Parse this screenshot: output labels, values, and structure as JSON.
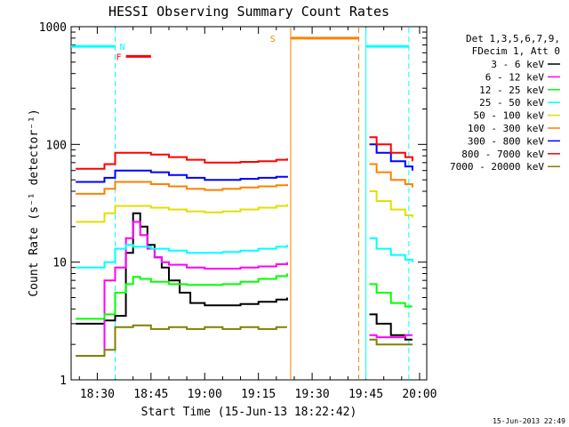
{
  "chart_data": {
    "type": "line",
    "title": "HESSI Observing Summary Count Rates",
    "xlabel": "Start Time (15-Jun-13 18:22:42)",
    "ylabel": "Count Rate (s⁻¹ detector⁻¹)",
    "yscale": "log",
    "ylim": [
      1,
      1000
    ],
    "xlim": [
      "18:22:42",
      "20:02:00"
    ],
    "x_ticks": [
      "18:30",
      "18:45",
      "19:00",
      "19:15",
      "19:30",
      "19:45",
      "20:00"
    ],
    "y_ticks": [
      "1",
      "10",
      "100",
      "1000"
    ],
    "grid": false,
    "legend_position": "right",
    "legend_header": [
      "Det 1,3,5,6,7,9,",
      "FDecim 1, Att 0"
    ],
    "footer_date": "15-Jun-2013 22:49",
    "data_gaps": [
      [
        "19:23",
        "19:45"
      ]
    ],
    "series": [
      {
        "name": "3 - 6 keV",
        "color": "#000000",
        "x": [
          "18:24",
          "18:32",
          "18:35",
          "18:38",
          "18:40",
          "18:42",
          "18:44",
          "18:46",
          "18:48",
          "18:50",
          "18:53",
          "18:56",
          "19:00",
          "19:05",
          "19:10",
          "19:15",
          "19:20",
          "19:23",
          "19:46",
          "19:48",
          "19:52",
          "19:56",
          "19:58"
        ],
        "values": [
          3.0,
          3.2,
          3.5,
          12,
          26,
          20,
          14,
          11,
          9,
          7,
          5.5,
          4.5,
          4.3,
          4.3,
          4.4,
          4.6,
          4.8,
          5.0,
          3.6,
          3.0,
          2.4,
          2.2,
          2.2
        ]
      },
      {
        "name": "6 - 12 keV",
        "color": "#ff00ff",
        "x": [
          "18:24",
          "18:32",
          "18:35",
          "18:38",
          "18:40",
          "18:42",
          "18:44",
          "18:46",
          "18:48",
          "18:50",
          "18:55",
          "19:00",
          "19:05",
          "19:10",
          "19:15",
          "19:20",
          "19:23",
          "19:46",
          "19:48",
          "19:52",
          "19:56",
          "19:58"
        ],
        "values": [
          1.6,
          7,
          9,
          16,
          22,
          17,
          13,
          11,
          10,
          9.5,
          9,
          8.8,
          8.8,
          9,
          9.2,
          9.6,
          10,
          2.4,
          2.3,
          2.3,
          2.4,
          2.4
        ]
      },
      {
        "name": "12 - 25 keV",
        "color": "#00ff00",
        "x": [
          "18:24",
          "18:32",
          "18:35",
          "18:38",
          "18:40",
          "18:42",
          "18:45",
          "18:50",
          "18:55",
          "19:00",
          "19:05",
          "19:10",
          "19:15",
          "19:20",
          "19:23",
          "19:46",
          "19:48",
          "19:52",
          "19:56",
          "19:58"
        ],
        "values": [
          3.3,
          3.6,
          5.5,
          6.5,
          7.5,
          7.2,
          6.8,
          6.5,
          6.4,
          6.4,
          6.5,
          6.8,
          7.2,
          7.6,
          8.0,
          6.5,
          5.5,
          4.5,
          4.2,
          4.2
        ]
      },
      {
        "name": "25 - 50 keV",
        "color": "#00ffff",
        "x": [
          "18:24",
          "18:32",
          "18:35",
          "18:38",
          "18:40",
          "18:45",
          "18:50",
          "18:55",
          "19:00",
          "19:05",
          "19:10",
          "19:15",
          "19:20",
          "19:23",
          "19:46",
          "19:48",
          "19:52",
          "19:56",
          "19:58"
        ],
        "values": [
          9,
          10,
          13,
          14,
          13.5,
          13,
          12.5,
          12,
          12,
          12.2,
          12.5,
          13,
          13.5,
          14,
          16,
          13,
          11.5,
          10.5,
          10
        ]
      },
      {
        "name": "50 - 100 keV",
        "color": "#e0e000",
        "x": [
          "18:24",
          "18:32",
          "18:35",
          "18:40",
          "18:45",
          "18:50",
          "18:55",
          "19:00",
          "19:05",
          "19:10",
          "19:15",
          "19:20",
          "19:23",
          "19:46",
          "19:48",
          "19:52",
          "19:56",
          "19:58"
        ],
        "values": [
          22,
          26,
          30,
          30,
          29,
          28,
          27,
          26.5,
          27,
          28,
          29,
          30,
          31,
          40,
          33,
          28,
          25,
          24
        ]
      },
      {
        "name": "100 - 300 keV",
        "color": "#ff8000",
        "x": [
          "18:24",
          "18:32",
          "18:35",
          "18:40",
          "18:45",
          "18:50",
          "18:55",
          "19:00",
          "19:05",
          "19:10",
          "19:15",
          "19:20",
          "19:23",
          "19:46",
          "19:48",
          "19:52",
          "19:56",
          "19:58"
        ],
        "values": [
          38,
          42,
          48,
          48,
          46,
          44,
          42,
          41,
          42,
          43,
          44,
          45,
          46,
          68,
          58,
          50,
          46,
          43
        ]
      },
      {
        "name": "300 - 800 keV",
        "color": "#0000ff",
        "x": [
          "18:24",
          "18:32",
          "18:35",
          "18:40",
          "18:45",
          "18:50",
          "18:55",
          "19:00",
          "19:05",
          "19:10",
          "19:15",
          "19:20",
          "19:23",
          "19:46",
          "19:48",
          "19:52",
          "19:56",
          "19:58"
        ],
        "values": [
          48,
          52,
          60,
          60,
          58,
          55,
          52,
          50,
          50,
          51,
          52,
          53,
          54,
          100,
          85,
          72,
          65,
          60
        ]
      },
      {
        "name": "800 - 7000 keV",
        "color": "#ff0000",
        "x": [
          "18:24",
          "18:32",
          "18:35",
          "18:40",
          "18:45",
          "18:50",
          "18:55",
          "19:00",
          "19:05",
          "19:10",
          "19:15",
          "19:20",
          "19:23",
          "19:46",
          "19:48",
          "19:52",
          "19:56",
          "19:58"
        ],
        "values": [
          62,
          68,
          85,
          85,
          82,
          78,
          74,
          70,
          70,
          71,
          72,
          74,
          76,
          115,
          100,
          85,
          78,
          72
        ]
      },
      {
        "name": "7000 - 20000 keV",
        "color": "#808000",
        "x": [
          "18:24",
          "18:32",
          "18:35",
          "18:40",
          "18:45",
          "18:50",
          "18:55",
          "19:00",
          "19:05",
          "19:10",
          "19:15",
          "19:20",
          "19:23",
          "19:46",
          "19:48",
          "19:52",
          "19:56",
          "19:58"
        ],
        "values": [
          1.6,
          1.8,
          2.8,
          2.9,
          2.7,
          2.8,
          2.7,
          2.8,
          2.7,
          2.8,
          2.7,
          2.8,
          2.8,
          2.2,
          2.0,
          2.0,
          2.0,
          2.0
        ]
      }
    ],
    "flags": [
      {
        "label": "N",
        "color": "#00ffff",
        "x": [
          "18:22:42",
          "18:35:00"
        ],
        "level": 680,
        "label_x": "18:37"
      },
      {
        "label": "N",
        "color": "#00ffff",
        "x": [
          "19:45:00",
          "19:57:00"
        ],
        "level": 680,
        "label_x": ""
      },
      {
        "label": "F",
        "color": "#ff0000",
        "x": [
          "18:38:00",
          "18:45:00"
        ],
        "level": 560,
        "label_x": "18:36"
      },
      {
        "label": "S",
        "color": "#ff8000",
        "x": [
          "19:24:00",
          "19:43:00"
        ],
        "level": 800,
        "label_x": "19:19"
      }
    ],
    "vertical_markers": [
      {
        "x": "18:35:00",
        "color": "#00ffff",
        "style": "dashed"
      },
      {
        "x": "19:24:00",
        "color": "#ff8000",
        "style": "solid"
      },
      {
        "x": "19:43:00",
        "color": "#ff8000",
        "style": "dashed"
      },
      {
        "x": "19:45:00",
        "color": "#00ffff",
        "style": "solid"
      },
      {
        "x": "19:57:00",
        "color": "#00ffff",
        "style": "dashed"
      }
    ]
  }
}
